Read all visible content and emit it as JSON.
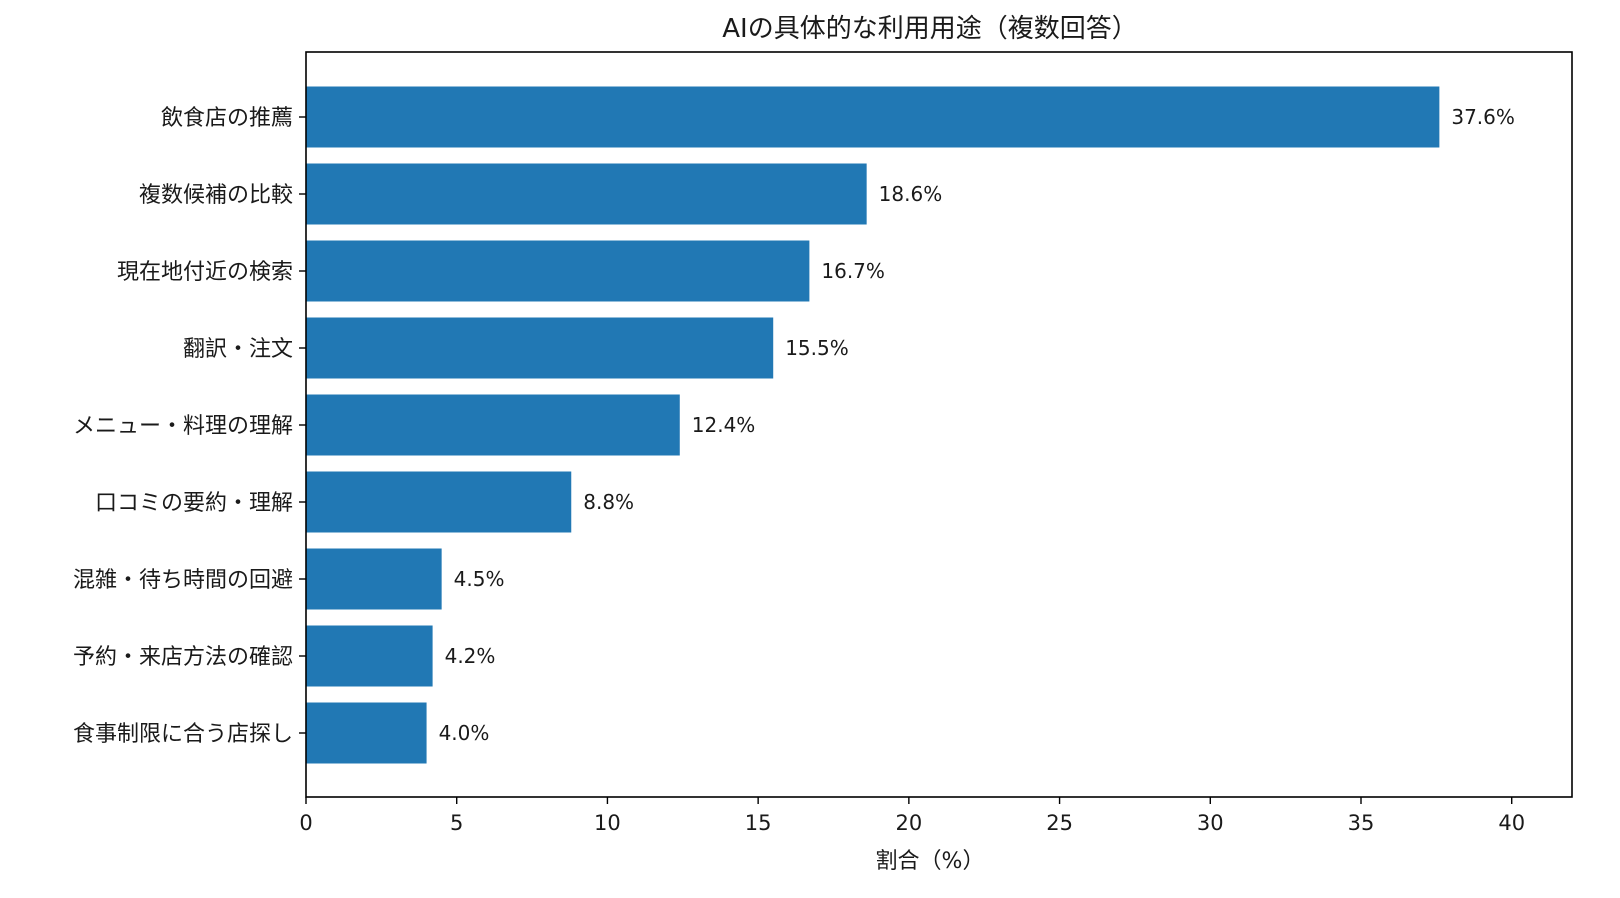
{
  "chart_data": {
    "type": "bar",
    "orientation": "horizontal",
    "title": "AIの具体的な利用用途（複数回答）",
    "xlabel": "割合（%）",
    "ylabel": "",
    "categories": [
      "飲食店の推薦",
      "複数候補の比較",
      "現在地付近の検索",
      "翻訳・注文",
      "メニュー・料理の理解",
      "口コミの要約・理解",
      "混雑・待ち時間の回避",
      "予約・来店方法の確認",
      "食事制限に合う店探し"
    ],
    "values": [
      37.6,
      18.6,
      16.7,
      15.5,
      12.4,
      8.8,
      4.5,
      4.2,
      4.0
    ],
    "value_labels": [
      "37.6%",
      "18.6%",
      "16.7%",
      "15.5%",
      "12.4%",
      "8.8%",
      "4.5%",
      "4.2%",
      "4.0%"
    ],
    "xlim": [
      0,
      42
    ],
    "xticks": [
      0,
      5,
      10,
      15,
      20,
      25,
      30,
      35,
      40
    ],
    "xtick_labels": [
      "0",
      "5",
      "10",
      "15",
      "20",
      "25",
      "30",
      "35",
      "40"
    ],
    "grid": false,
    "legend": "none",
    "bar_color": "#2178b4"
  }
}
